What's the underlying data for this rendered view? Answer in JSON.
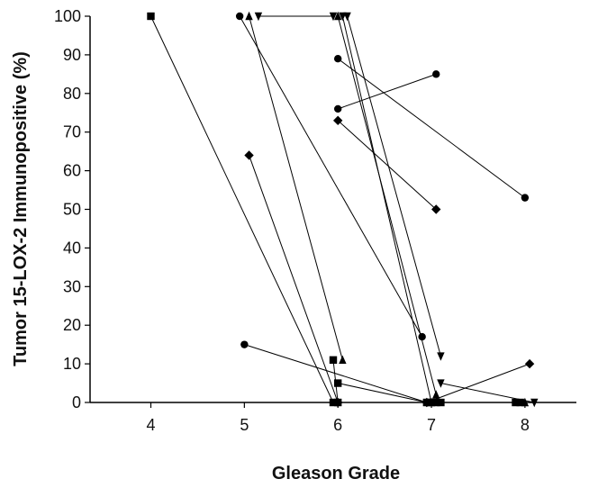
{
  "chart_data": {
    "type": "line",
    "title": "",
    "xlabel": "Gleason Grade",
    "ylabel": "Tumor 15-LOX-2 Immunopositive (%)",
    "xlim": [
      3.35,
      8.55
    ],
    "ylim": [
      0,
      100
    ],
    "x_ticks": [
      4,
      5,
      6,
      7,
      8
    ],
    "y_ticks": [
      0,
      10,
      20,
      30,
      40,
      50,
      60,
      70,
      80,
      90,
      100
    ],
    "grid": false,
    "legend": "none",
    "series": [
      {
        "marker": "square",
        "points": [
          {
            "x": 4,
            "y": 100
          },
          {
            "x": 5.95,
            "y": 0
          }
        ]
      },
      {
        "marker": "square",
        "points": [
          {
            "x": 5.95,
            "y": 11
          },
          {
            "x": 6,
            "y": 0
          }
        ]
      },
      {
        "marker": "square",
        "points": [
          {
            "x": 6.0,
            "y": 5
          },
          {
            "x": 6.95,
            "y": 0
          }
        ]
      },
      {
        "marker": "square",
        "points": [
          {
            "x": 7.05,
            "y": 0
          },
          {
            "x": 7.1,
            "y": 0
          }
        ]
      },
      {
        "marker": "square",
        "points": [
          {
            "x": 7.9,
            "y": 0
          },
          {
            "x": 7.95,
            "y": 0
          }
        ]
      },
      {
        "marker": "diamond",
        "points": [
          {
            "x": 5.05,
            "y": 64
          },
          {
            "x": 6.0,
            "y": 0
          }
        ]
      },
      {
        "marker": "diamond",
        "points": [
          {
            "x": 6.0,
            "y": 73
          },
          {
            "x": 7.05,
            "y": 50
          }
        ]
      },
      {
        "marker": "diamond",
        "points": [
          {
            "x": 6.95,
            "y": 0
          },
          {
            "x": 8.05,
            "y": 10
          }
        ]
      },
      {
        "marker": "circle",
        "points": [
          {
            "x": 4.95,
            "y": 100
          },
          {
            "x": 6.9,
            "y": 17
          }
        ]
      },
      {
        "marker": "circle",
        "points": [
          {
            "x": 5.0,
            "y": 15
          },
          {
            "x": 6.95,
            "y": 0
          }
        ]
      },
      {
        "marker": "circle",
        "points": [
          {
            "x": 6.0,
            "y": 89
          },
          {
            "x": 8.0,
            "y": 53
          }
        ]
      },
      {
        "marker": "circle",
        "points": [
          {
            "x": 6.0,
            "y": 76
          },
          {
            "x": 7.05,
            "y": 85
          }
        ]
      },
      {
        "marker": "triangle-up",
        "points": [
          {
            "x": 5.05,
            "y": 100
          },
          {
            "x": 6.05,
            "y": 11
          }
        ]
      },
      {
        "marker": "triangle-up",
        "points": [
          {
            "x": 6.0,
            "y": 100
          },
          {
            "x": 7.05,
            "y": 2
          }
        ]
      },
      {
        "marker": "triangle-up",
        "points": [
          {
            "x": 7.0,
            "y": 0
          },
          {
            "x": 8.0,
            "y": 0
          }
        ]
      },
      {
        "marker": "triangle-down",
        "points": [
          {
            "x": 5.15,
            "y": 100
          },
          {
            "x": 5.95,
            "y": 100
          }
        ]
      },
      {
        "marker": "triangle-down",
        "points": [
          {
            "x": 6.1,
            "y": 100
          },
          {
            "x": 7.1,
            "y": 12
          }
        ]
      },
      {
        "marker": "triangle-down",
        "points": [
          {
            "x": 6.05,
            "y": 100
          },
          {
            "x": 7.0,
            "y": 0
          }
        ]
      },
      {
        "marker": "triangle-down",
        "points": [
          {
            "x": 7.1,
            "y": 5
          },
          {
            "x": 8.1,
            "y": 0
          }
        ]
      }
    ]
  }
}
